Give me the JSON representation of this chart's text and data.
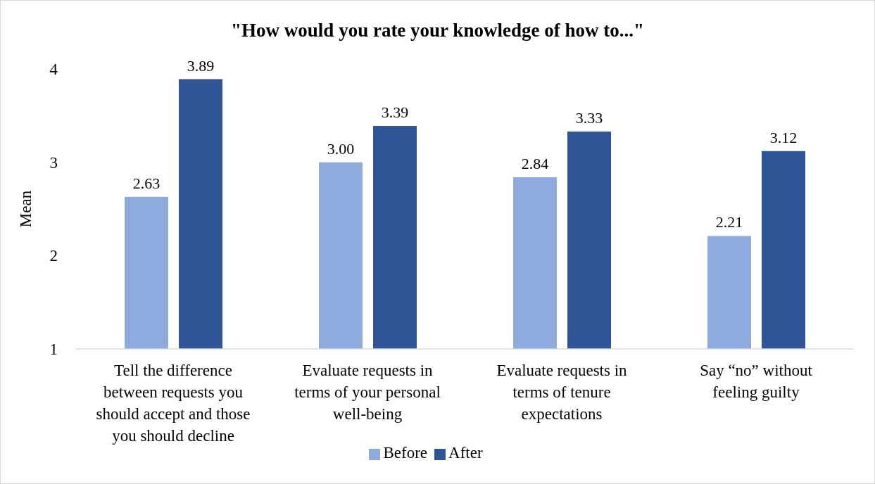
{
  "chart_data": {
    "type": "bar",
    "title": "\"How would you rate your knowledge of how to...\"",
    "ylabel": "Mean",
    "categories": [
      "Tell the difference between requests you should accept and those you should decline",
      "Evaluate requests in terms of your personal well-being",
      "Evaluate requests in terms of tenure expectations",
      "Say “no” without feeling guilty"
    ],
    "series": [
      {
        "name": "Before",
        "color": "#8faadc",
        "values": [
          2.63,
          3.0,
          2.84,
          2.21
        ],
        "value_labels": [
          "2.63",
          "3.00",
          "2.84",
          "2.21"
        ]
      },
      {
        "name": "After",
        "color": "#2f5597",
        "values": [
          3.89,
          3.39,
          3.33,
          3.12
        ],
        "value_labels": [
          "3.89",
          "3.39",
          "3.33",
          "3.12"
        ]
      }
    ],
    "ylim": [
      1,
      4
    ],
    "yticks": [
      1,
      2,
      3,
      4
    ],
    "grid": false,
    "legend": "bottom"
  }
}
